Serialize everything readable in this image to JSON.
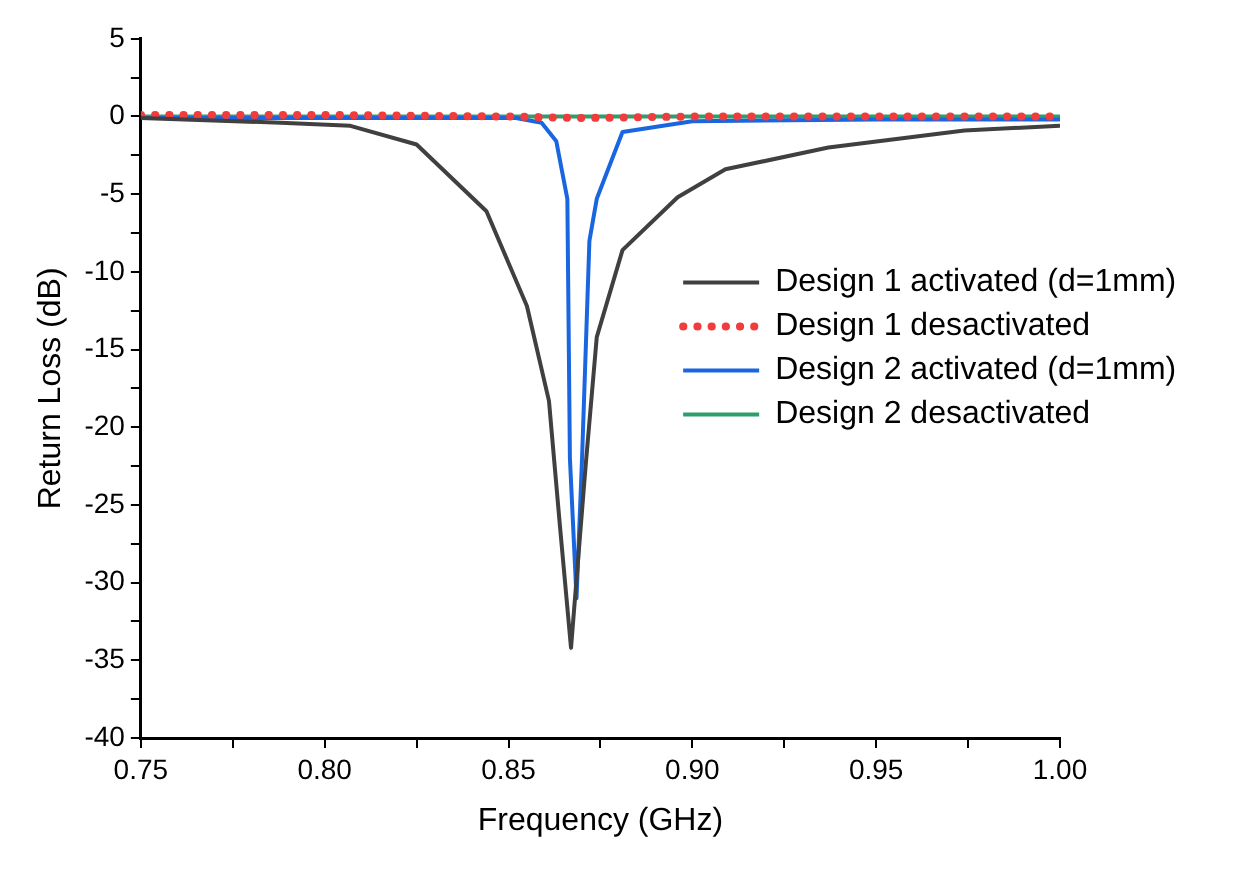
{
  "chart_data": {
    "type": "line",
    "xlabel": "Frequency (GHz)",
    "ylabel": "Return Loss (dB)",
    "xlim": [
      0.75,
      1.0
    ],
    "ylim": [
      -40,
      5
    ],
    "xticks": [
      {
        "value": 0.75,
        "label": "0.75"
      },
      {
        "value": 0.775,
        "label": null
      },
      {
        "value": 0.8,
        "label": "0.80"
      },
      {
        "value": 0.825,
        "label": null
      },
      {
        "value": 0.85,
        "label": "0.85"
      },
      {
        "value": 0.875,
        "label": null
      },
      {
        "value": 0.9,
        "label": "0.90"
      },
      {
        "value": 0.925,
        "label": null
      },
      {
        "value": 0.95,
        "label": "0.95"
      },
      {
        "value": 0.975,
        "label": null
      },
      {
        "value": 1.0,
        "label": "1.00"
      }
    ],
    "yticks": [
      -40,
      {
        "value": -37.5,
        "label": null
      },
      -35,
      {
        "value": -32.5,
        "label": null
      },
      -30,
      {
        "value": -27.5,
        "label": null
      },
      -25,
      {
        "value": -22.5,
        "label": null
      },
      -20,
      {
        "value": -17.5,
        "label": null
      },
      -15,
      {
        "value": -12.5,
        "label": null
      },
      -10,
      {
        "value": -7.5,
        "label": null
      },
      -5,
      {
        "value": -2.5,
        "label": null
      },
      0,
      {
        "value": 2.5,
        "label": null
      },
      5
    ],
    "grid": false,
    "legend": "right",
    "marker": "none",
    "series": [
      {
        "name": "Design 1 activated (d=1mm)",
        "color": "#404040",
        "line_style": "solid",
        "x": [
          0.75,
          0.788,
          0.807,
          0.825,
          0.844,
          0.855,
          0.861,
          0.864,
          0.867,
          0.871,
          0.874,
          0.881,
          0.896,
          0.909,
          0.937,
          0.974,
          1.0
        ],
        "values": [
          -0.1,
          -0.4,
          -0.6,
          -1.8,
          -6.1,
          -12.2,
          -18.3,
          -26.4,
          -34.2,
          -22.4,
          -14.2,
          -8.6,
          -5.2,
          -3.4,
          -2.0,
          -0.9,
          -0.6
        ]
      },
      {
        "name": "Design 1 desactivated",
        "color": "#f03c3c",
        "line_style": "dotted",
        "x": [
          0.75,
          0.8,
          0.85,
          0.87,
          0.9,
          0.95,
          1.0
        ],
        "values": [
          0.1,
          0.1,
          0.0,
          -0.1,
          0.0,
          0.0,
          0.0
        ]
      },
      {
        "name": "Design 2 activated (d=1mm)",
        "color": "#1a66e0",
        "line_style": "solid",
        "x": [
          0.75,
          0.8,
          0.852,
          0.859,
          0.863,
          0.866,
          0.8667,
          0.8685,
          0.87,
          0.872,
          0.874,
          0.881,
          0.9,
          0.95,
          1.0
        ],
        "values": [
          -0.1,
          -0.1,
          -0.1,
          -0.4,
          -1.6,
          -5.3,
          -22,
          -31,
          -22,
          -8,
          -5.3,
          -1.0,
          -0.3,
          -0.2,
          -0.2
        ]
      },
      {
        "name": "Design 2 desactivated",
        "color": "#2e9e6e",
        "line_style": "solid",
        "x": [
          0.75,
          0.85,
          0.9,
          1.0
        ],
        "values": [
          0.0,
          0.0,
          0.0,
          0.0
        ]
      }
    ]
  }
}
